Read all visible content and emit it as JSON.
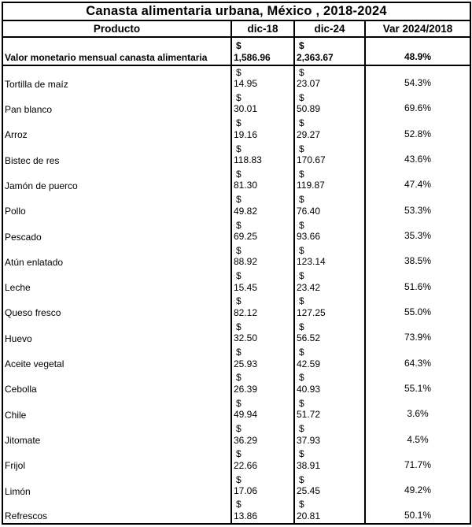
{
  "chart_data": {
    "type": "table",
    "title": "Canasta alimentaria urbana, México , 2018-2024",
    "columns": [
      "Producto",
      "dic-18",
      "dic-24",
      "Var 2024/2018"
    ],
    "currency_symbol": "$",
    "summary_row": {
      "name": "Valor monetario mensual canasta alimentaria",
      "v18": "1,586.96",
      "v24": "2,363.67",
      "var": "48.9%"
    },
    "rows": [
      {
        "name": "Tortilla de maíz",
        "v18": "14.95",
        "v24": "23.07",
        "var": "54.3%"
      },
      {
        "name": "Pan blanco",
        "v18": "30.01",
        "v24": "50.89",
        "var": "69.6%"
      },
      {
        "name": "Arroz",
        "v18": "19.16",
        "v24": "29.27",
        "var": "52.8%"
      },
      {
        "name": "Bistec de res",
        "v18": "118.83",
        "v24": "170.67",
        "var": "43.6%"
      },
      {
        "name": "Jamón de puerco",
        "v18": "81.30",
        "v24": "119.87",
        "var": "47.4%"
      },
      {
        "name": "Pollo",
        "v18": "49.82",
        "v24": "76.40",
        "var": "53.3%"
      },
      {
        "name": "Pescado",
        "v18": "69.25",
        "v24": "93.66",
        "var": "35.3%"
      },
      {
        "name": "Atún enlatado",
        "v18": "88.92",
        "v24": "123.14",
        "var": "38.5%"
      },
      {
        "name": "Leche",
        "v18": "15.45",
        "v24": "23.42",
        "var": "51.6%"
      },
      {
        "name": "Queso fresco",
        "v18": "82.12",
        "v24": "127.25",
        "var": "55.0%"
      },
      {
        "name": "Huevo",
        "v18": "32.50",
        "v24": "56.52",
        "var": "73.9%"
      },
      {
        "name": "Aceite vegetal",
        "v18": "25.93",
        "v24": "42.59",
        "var": "64.3%"
      },
      {
        "name": "Cebolla",
        "v18": "26.39",
        "v24": "40.93",
        "var": "55.1%"
      },
      {
        "name": "Chile",
        "v18": "49.94",
        "v24": "51.72",
        "var": "3.6%"
      },
      {
        "name": "Jitomate",
        "v18": "36.29",
        "v24": "37.93",
        "var": "4.5%"
      },
      {
        "name": "Frijol",
        "v18": "22.66",
        "v24": "38.91",
        "var": "71.7%"
      },
      {
        "name": "Limón",
        "v18": "17.06",
        "v24": "25.45",
        "var": "49.2%"
      },
      {
        "name": "Refrescos",
        "v18": "13.86",
        "v24": "20.81",
        "var": "50.1%"
      }
    ]
  }
}
